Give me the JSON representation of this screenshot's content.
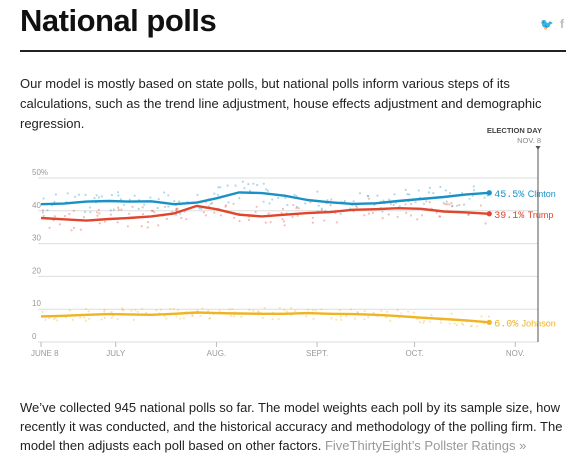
{
  "header": {
    "title": "National polls",
    "twitter_icon": "twitter-icon",
    "facebook_icon": "facebook-icon",
    "twitter_glyph": "🐦",
    "facebook_glyph": "f"
  },
  "intro": "Our model is mostly based on state polls, but national polls inform various steps of its calculations, such as the trend line adjustment, house effects adjustment and demographic regression.",
  "outro": {
    "text": "We’ve collected 945 national polls so far. The model weights each poll by its sample size, how recently it was conducted, and the historical accuracy and methodology of the polling firm. The model then adjusts each poll based on other factors. ",
    "link": "FiveThirtyEight’s Pollster Ratings »"
  },
  "chart_data": {
    "type": "line",
    "title": "",
    "xlabel": "",
    "ylabel": "",
    "ylim": [
      0,
      55
    ],
    "xlim": [
      "2016-06-08",
      "2016-11-08"
    ],
    "y_ticks": [
      "50%",
      "40",
      "30",
      "20",
      "10",
      "0"
    ],
    "x_ticks": [
      "JUNE 8",
      "JULY",
      "AUG.",
      "SEPT.",
      "OCT.",
      "NOV."
    ],
    "annotation": {
      "label": "ELECTION DAY",
      "sublabel": "NOV. 8",
      "date": "2016-11-08"
    },
    "grid": true,
    "series": [
      {
        "name": "Clinton",
        "color": "#1a91c6",
        "end_label": "45.5%",
        "trend": [
          [
            "2016-06-08",
            42.0
          ],
          [
            "2016-06-15",
            42.2
          ],
          [
            "2016-06-22",
            42.8
          ],
          [
            "2016-06-29",
            43.0
          ],
          [
            "2016-07-05",
            42.8
          ],
          [
            "2016-07-12",
            42.9
          ],
          [
            "2016-07-19",
            42.0
          ],
          [
            "2016-07-26",
            42.5
          ],
          [
            "2016-08-01",
            43.8
          ],
          [
            "2016-08-08",
            45.6
          ],
          [
            "2016-08-15",
            45.4
          ],
          [
            "2016-08-22",
            44.6
          ],
          [
            "2016-08-29",
            43.3
          ],
          [
            "2016-09-05",
            42.6
          ],
          [
            "2016-09-12",
            42.1
          ],
          [
            "2016-09-19",
            42.3
          ],
          [
            "2016-09-26",
            43.0
          ],
          [
            "2016-10-03",
            43.6
          ],
          [
            "2016-10-10",
            44.2
          ],
          [
            "2016-10-17",
            45.0
          ],
          [
            "2016-10-24",
            45.5
          ]
        ]
      },
      {
        "name": "Trump",
        "color": "#e0462b",
        "end_label": "39.1%",
        "trend": [
          [
            "2016-06-08",
            37.8
          ],
          [
            "2016-06-15",
            37.4
          ],
          [
            "2016-06-22",
            37.0
          ],
          [
            "2016-06-29",
            37.5
          ],
          [
            "2016-07-05",
            37.8
          ],
          [
            "2016-07-12",
            38.3
          ],
          [
            "2016-07-19",
            39.2
          ],
          [
            "2016-07-26",
            41.5
          ],
          [
            "2016-08-01",
            40.5
          ],
          [
            "2016-08-08",
            38.8
          ],
          [
            "2016-08-15",
            38.3
          ],
          [
            "2016-08-22",
            38.8
          ],
          [
            "2016-08-29",
            39.3
          ],
          [
            "2016-09-05",
            39.6
          ],
          [
            "2016-09-12",
            40.3
          ],
          [
            "2016-09-19",
            40.5
          ],
          [
            "2016-09-26",
            40.8
          ],
          [
            "2016-10-03",
            40.6
          ],
          [
            "2016-10-10",
            39.8
          ],
          [
            "2016-10-17",
            39.5
          ],
          [
            "2016-10-24",
            39.1
          ]
        ]
      },
      {
        "name": "Johnson",
        "color": "#f0b323",
        "end_label": "6.0%",
        "trend": [
          [
            "2016-06-08",
            7.8
          ],
          [
            "2016-06-15",
            8.0
          ],
          [
            "2016-06-22",
            8.3
          ],
          [
            "2016-06-29",
            8.5
          ],
          [
            "2016-07-05",
            8.4
          ],
          [
            "2016-07-12",
            8.3
          ],
          [
            "2016-07-19",
            8.6
          ],
          [
            "2016-07-26",
            9.0
          ],
          [
            "2016-08-01",
            8.8
          ],
          [
            "2016-08-08",
            8.7
          ],
          [
            "2016-08-15",
            8.6
          ],
          [
            "2016-08-22",
            8.6
          ],
          [
            "2016-08-29",
            8.8
          ],
          [
            "2016-09-05",
            8.6
          ],
          [
            "2016-09-12",
            8.5
          ],
          [
            "2016-09-19",
            8.3
          ],
          [
            "2016-09-26",
            7.9
          ],
          [
            "2016-10-03",
            7.4
          ],
          [
            "2016-10-10",
            7.0
          ],
          [
            "2016-10-17",
            6.6
          ],
          [
            "2016-10-24",
            6.0
          ]
        ]
      }
    ]
  }
}
